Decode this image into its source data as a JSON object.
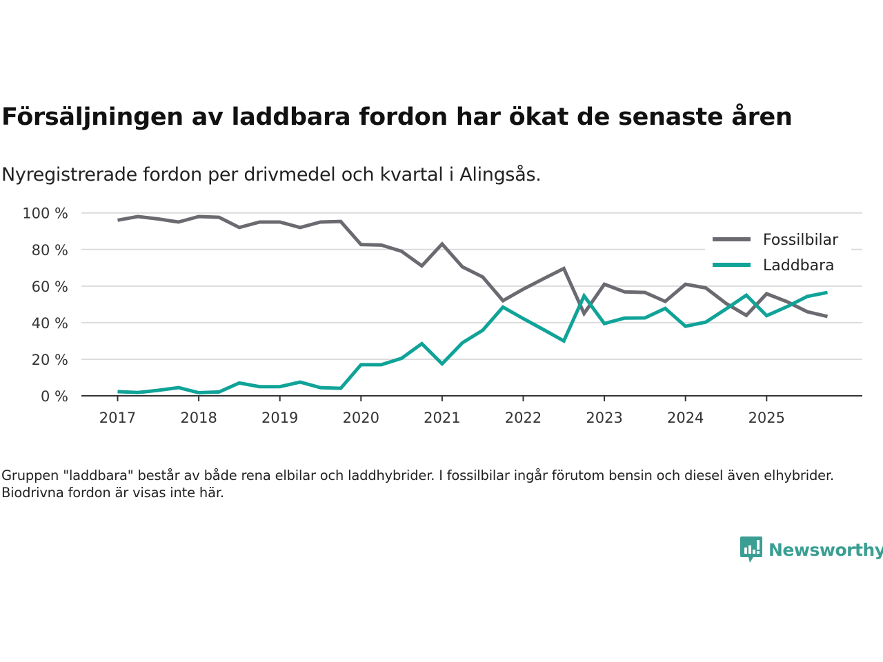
{
  "header": {
    "title": "Försäljningen av laddbara fordon har ökat de senaste åren",
    "subtitle": "Nyregistrerade fordon per drivmedel och kvartal i Alingsås."
  },
  "footer": {
    "note": "Gruppen \"laddbara\" består av både rena elbilar och laddhybrider. I fossilbilar ingår förutom bensin och diesel även elhybrider. Biodrivna fordon är visas inte här.",
    "logo_text": "Newsworthy",
    "logo_icon": "bar-chart-speech-bubble-icon",
    "brand_color": "#3a9e93"
  },
  "chart_data": {
    "type": "line",
    "title": "Försäljningen av laddbara fordon har ökat de senaste åren",
    "subtitle": "Nyregistrerade fordon per drivmedel och kvartal i Alingsås.",
    "xlabel": "",
    "ylabel": "",
    "ylim": [
      0,
      100
    ],
    "y_ticks": [
      0,
      20,
      40,
      60,
      80,
      100
    ],
    "y_tick_labels": [
      "0 %",
      "20 %",
      "40 %",
      "60 %",
      "80 %",
      "100 %"
    ],
    "x_ticks": [
      "2017",
      "2018",
      "2019",
      "2020",
      "2021",
      "2022",
      "2023",
      "2024",
      "2025"
    ],
    "grid": true,
    "legend_position": "top-right",
    "x": [
      "2017 Q1",
      "2017 Q2",
      "2017 Q3",
      "2017 Q4",
      "2018 Q1",
      "2018 Q2",
      "2018 Q3",
      "2018 Q4",
      "2019 Q1",
      "2019 Q2",
      "2019 Q3",
      "2019 Q4",
      "2020 Q1",
      "2020 Q2",
      "2020 Q3",
      "2020 Q4",
      "2021 Q1",
      "2021 Q2",
      "2021 Q3",
      "2021 Q4",
      "2022 Q1",
      "2022 Q2",
      "2022 Q3",
      "2022 Q4",
      "2023 Q1",
      "2023 Q2",
      "2023 Q3",
      "2023 Q4",
      "2024 Q1",
      "2024 Q2",
      "2024 Q3",
      "2024 Q4",
      "2025 Q1",
      "2025 Q2",
      "2025 Q3",
      "2025 Q4"
    ],
    "series": [
      {
        "name": "Fossilbilar",
        "color": "#6b6a70",
        "values": [
          96.0,
          98.0,
          96.7,
          95.0,
          98.0,
          97.6,
          92.0,
          95.0,
          95.0,
          92.0,
          95.0,
          95.3,
          82.7,
          82.4,
          79.0,
          71.0,
          83.0,
          70.5,
          65.0,
          52.0,
          58.3,
          64.0,
          69.6,
          45.0,
          61.0,
          56.8,
          56.5,
          51.6,
          61.0,
          59.0,
          50.5,
          44.0,
          55.8,
          51.5,
          46.0,
          43.4
        ]
      },
      {
        "name": "Laddbara",
        "color": "#10a398",
        "values": [
          2.3,
          1.8,
          3.0,
          4.5,
          1.7,
          2.1,
          7.0,
          5.0,
          5.0,
          7.5,
          4.5,
          4.1,
          17.0,
          17.0,
          20.5,
          28.5,
          17.5,
          29.0,
          35.8,
          48.5,
          42.2,
          36.2,
          30.0,
          54.6,
          39.5,
          42.5,
          42.6,
          47.8,
          38.0,
          40.3,
          47.5,
          55.0,
          43.8,
          48.7,
          54.3,
          56.5
        ]
      }
    ]
  }
}
